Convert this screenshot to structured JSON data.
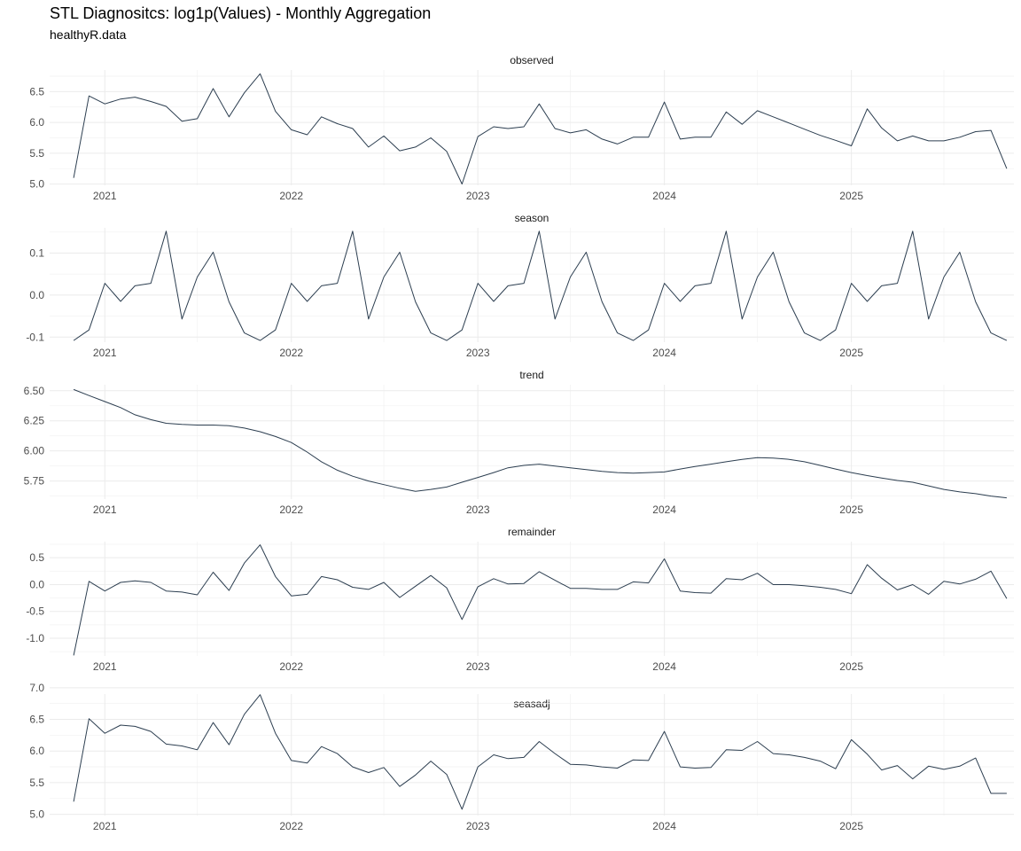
{
  "title": "STL Diagnositcs: log1p(Values) - Monthly Aggregation",
  "subtitle": "healthyR.data",
  "colors": {
    "line": "#2c3e50",
    "grid": "#ebebeb",
    "axis_text": "#4d4d4d"
  },
  "chart_data": {
    "type": "line",
    "facet_layout": "vertical",
    "grid": true,
    "legend": "none",
    "x_labels": [
      "2021",
      "2022",
      "2023",
      "2024",
      "2025"
    ],
    "x_label_dates": [
      "2021-01-01",
      "2022-01-01",
      "2023-01-01",
      "2024-01-01",
      "2025-01-01"
    ],
    "x_start": "2020-11-01",
    "x_end": "2025-10-01",
    "xlim": [
      "2020-09-15",
      "2025-11-15"
    ],
    "panels": [
      {
        "name": "observed",
        "ylim": [
          4.98,
          6.85
        ],
        "y_ticks": [
          5.0,
          5.5,
          6.0,
          6.5
        ],
        "y_tick_labels": [
          "5.0",
          "5.5",
          "6.0",
          "6.5"
        ],
        "values": [
          5.1,
          6.43,
          6.3,
          6.38,
          6.41,
          6.34,
          6.26,
          6.02,
          6.06,
          6.55,
          6.09,
          6.48,
          6.79,
          6.18,
          5.88,
          5.8,
          6.09,
          5.98,
          5.9,
          5.6,
          5.78,
          5.54,
          5.6,
          5.75,
          5.53,
          5.0,
          5.77,
          5.93,
          5.9,
          5.93,
          6.3,
          5.9,
          5.83,
          5.88,
          5.73,
          5.65,
          5.76,
          5.76,
          6.33,
          5.73,
          5.76,
          5.76,
          6.17,
          5.97,
          6.19,
          6.09,
          5.99,
          5.89,
          5.79,
          5.71,
          5.62,
          6.22,
          5.91,
          5.7,
          5.78,
          5.7,
          5.7,
          5.76,
          5.85,
          5.87,
          5.25
        ]
      },
      {
        "name": "season",
        "ylim": [
          -0.112,
          0.16
        ],
        "y_ticks": [
          -0.1,
          0.0,
          0.1
        ],
        "y_tick_labels": [
          "-0.1",
          "0.0",
          "0.1"
        ],
        "values": [
          -0.108,
          -0.083,
          0.028,
          -0.015,
          0.022,
          0.028,
          0.152,
          -0.057,
          0.043,
          0.102,
          -0.016,
          -0.09,
          -0.108,
          -0.083,
          0.028,
          -0.015,
          0.022,
          0.028,
          0.152,
          -0.057,
          0.043,
          0.102,
          -0.016,
          -0.09,
          -0.108,
          -0.083,
          0.028,
          -0.015,
          0.022,
          0.028,
          0.152,
          -0.057,
          0.043,
          0.102,
          -0.016,
          -0.09,
          -0.108,
          -0.083,
          0.028,
          -0.015,
          0.022,
          0.028,
          0.152,
          -0.057,
          0.043,
          0.102,
          -0.016,
          -0.09,
          -0.108,
          -0.083,
          0.028,
          -0.015,
          0.022,
          0.028,
          0.152,
          -0.057,
          0.043,
          0.102,
          -0.016,
          -0.09,
          -0.108
        ]
      },
      {
        "name": "trend",
        "ylim": [
          5.6,
          6.55
        ],
        "y_ticks": [
          5.75,
          6.0,
          6.25,
          6.5
        ],
        "y_tick_labels": [
          "5.75",
          "6.00",
          "6.25",
          "6.50"
        ],
        "values": [
          6.51,
          6.46,
          6.41,
          6.36,
          6.3,
          6.26,
          6.23,
          6.22,
          6.215,
          6.215,
          6.21,
          6.19,
          6.16,
          6.12,
          6.07,
          5.99,
          5.91,
          5.84,
          5.79,
          5.75,
          5.72,
          5.69,
          5.665,
          5.68,
          5.7,
          5.74,
          5.78,
          5.82,
          5.86,
          5.88,
          5.89,
          5.875,
          5.86,
          5.845,
          5.83,
          5.82,
          5.815,
          5.82,
          5.825,
          5.85,
          5.87,
          5.89,
          5.91,
          5.93,
          5.945,
          5.94,
          5.93,
          5.91,
          5.88,
          5.85,
          5.82,
          5.795,
          5.775,
          5.755,
          5.74,
          5.71,
          5.68,
          5.66,
          5.645,
          5.625,
          5.61
        ]
      },
      {
        "name": "remainder",
        "ylim": [
          -1.33,
          0.8
        ],
        "y_ticks": [
          -1.0,
          -0.5,
          0.0,
          0.5
        ],
        "y_tick_labels": [
          "-1.0",
          "-0.5",
          "0.0",
          "0.5"
        ],
        "values": [
          -1.32,
          0.06,
          -0.12,
          0.04,
          0.07,
          0.04,
          -0.12,
          -0.14,
          -0.19,
          0.23,
          -0.11,
          0.4,
          0.74,
          0.15,
          -0.21,
          -0.18,
          0.15,
          0.09,
          -0.05,
          -0.09,
          0.04,
          -0.24,
          -0.03,
          0.17,
          -0.06,
          -0.65,
          -0.04,
          0.11,
          0.01,
          0.02,
          0.24,
          0.08,
          -0.07,
          -0.07,
          -0.09,
          -0.09,
          0.05,
          0.03,
          0.48,
          -0.12,
          -0.15,
          -0.16,
          0.11,
          0.09,
          0.21,
          0.0,
          0.0,
          -0.02,
          -0.05,
          -0.09,
          -0.17,
          0.37,
          0.12,
          -0.1,
          0.0,
          -0.18,
          0.06,
          0.01,
          0.1,
          0.25,
          -0.26
        ]
      },
      {
        "name": "seasadj",
        "ylim": [
          4.98,
          6.9
        ],
        "y_ticks": [
          5.0,
          5.5,
          6.0,
          6.5,
          7.0
        ],
        "y_tick_labels": [
          "5.0",
          "5.5",
          "6.0",
          "6.5",
          "7.0"
        ],
        "values": [
          5.2,
          6.51,
          6.28,
          6.41,
          6.39,
          6.31,
          6.11,
          6.08,
          6.02,
          6.45,
          6.1,
          6.58,
          6.89,
          6.28,
          5.85,
          5.81,
          6.07,
          5.96,
          5.75,
          5.66,
          5.74,
          5.44,
          5.62,
          5.84,
          5.63,
          5.08,
          5.75,
          5.94,
          5.88,
          5.9,
          6.15,
          5.96,
          5.79,
          5.78,
          5.75,
          5.73,
          5.86,
          5.85,
          6.31,
          5.75,
          5.73,
          5.74,
          6.02,
          6.01,
          6.15,
          5.96,
          5.94,
          5.9,
          5.84,
          5.72,
          6.18,
          5.95,
          5.7,
          5.77,
          5.56,
          5.76,
          5.71,
          5.76,
          5.89,
          5.33,
          5.33
        ]
      }
    ]
  }
}
